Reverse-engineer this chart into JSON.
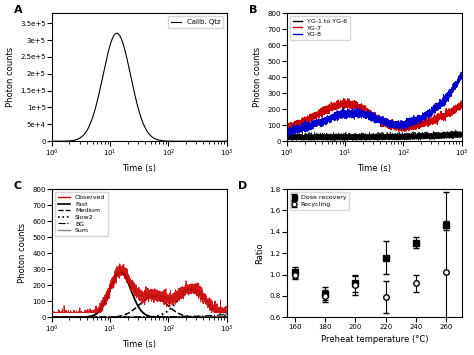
{
  "panel_labels": [
    "A",
    "B",
    "C",
    "D"
  ],
  "panel_A": {
    "ylabel": "Photon counts",
    "xlabel": "Time (s)",
    "legend": "Calib. Qtz",
    "ylim": [
      0,
      380000
    ],
    "xlim": [
      1,
      1000
    ],
    "peak_time": 13,
    "peak_val": 320000,
    "sigma": 0.55
  },
  "panel_B": {
    "ylabel": "Photon counts",
    "xlabel": "Time (s)",
    "ylim": [
      0,
      800
    ],
    "xlim": [
      1,
      1000
    ],
    "legend_labels": [
      "YG-1 to YG-6",
      "YG-7",
      "YG-8"
    ],
    "legend_colors": [
      "#000000",
      "#cc0000",
      "#0000cc"
    ]
  },
  "panel_C": {
    "ylabel": "Photon counts",
    "xlabel": "Time (s)",
    "ylim": [
      0,
      800
    ],
    "xlim": [
      1,
      1000
    ],
    "legend_labels": [
      "Observed",
      "Fast",
      "Medium",
      "Slow2",
      "BG",
      "Sum"
    ],
    "legend_colors": [
      "#cc0000",
      "#000000",
      "#000000",
      "#000000",
      "#000000",
      "#888888"
    ],
    "legend_styles": [
      "-",
      "-",
      "--",
      ":",
      "-.",
      "-"
    ]
  },
  "panel_D": {
    "ylabel": "Ratio",
    "xlabel": "Preheat temperature (°C)",
    "ylim": [
      0.6,
      1.8
    ],
    "yticks": [
      0.6,
      0.8,
      1.0,
      1.2,
      1.4,
      1.6,
      1.8
    ],
    "xlim": [
      155,
      270
    ],
    "xticks": [
      160,
      180,
      200,
      220,
      240,
      260
    ],
    "dose_recovery_x": [
      160,
      180,
      200,
      220,
      240,
      260
    ],
    "dose_recovery_y": [
      1.02,
      0.82,
      0.92,
      1.16,
      1.3,
      1.46
    ],
    "dose_recovery_err": [
      0.05,
      0.06,
      0.08,
      0.15,
      0.05,
      0.04
    ],
    "recycling_x": [
      160,
      180,
      200,
      220,
      240,
      260
    ],
    "recycling_y": [
      1.0,
      0.8,
      0.9,
      0.79,
      0.92,
      1.02
    ],
    "recycling_err": [
      0.04,
      0.06,
      0.09,
      0.15,
      0.08,
      0.75
    ],
    "legend_labels": [
      "Dose recovery",
      "Recycling"
    ]
  },
  "bg_color": "#ffffff",
  "grid": false
}
